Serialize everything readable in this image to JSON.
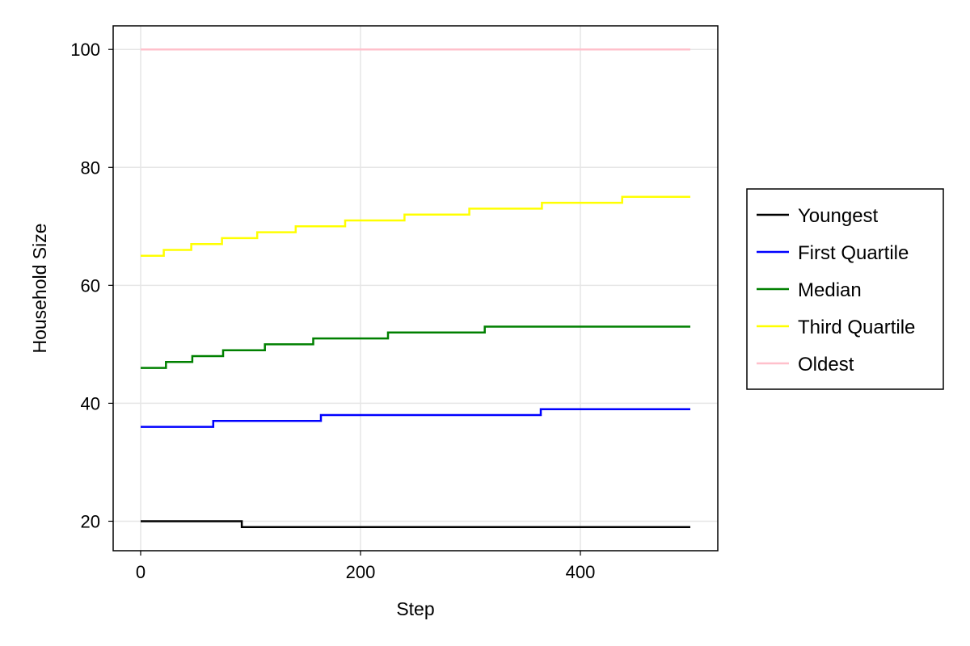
{
  "chart_data": {
    "type": "line",
    "xlabel": "Step",
    "ylabel": "Household Size",
    "xlim": [
      -25,
      525
    ],
    "ylim": [
      15,
      104
    ],
    "xticks": [
      0,
      200,
      400
    ],
    "yticks": [
      20,
      40,
      60,
      80,
      100
    ],
    "grid": true,
    "legend_position": "right",
    "step_style": "post",
    "series": [
      {
        "name": "Youngest",
        "color": "#000000",
        "x": [
          0,
          92,
          500
        ],
        "y": [
          20,
          19,
          19
        ]
      },
      {
        "name": "First Quartile",
        "color": "#0000ff",
        "x": [
          0,
          66,
          164,
          364,
          500
        ],
        "y": [
          36,
          37,
          38,
          39,
          39
        ]
      },
      {
        "name": "Median",
        "color": "#008000",
        "x": [
          0,
          23,
          47,
          75,
          113,
          157,
          225,
          313,
          500
        ],
        "y": [
          46,
          47,
          48,
          49,
          50,
          51,
          52,
          53,
          53
        ]
      },
      {
        "name": "Third Quartile",
        "color": "#ffff00",
        "x": [
          0,
          21,
          46,
          74,
          106,
          141,
          186,
          240,
          299,
          365,
          438,
          500
        ],
        "y": [
          65,
          66,
          67,
          68,
          69,
          70,
          71,
          72,
          73,
          74,
          75,
          75
        ]
      },
      {
        "name": "Oldest",
        "color": "#ffc0cb",
        "x": [
          0,
          500
        ],
        "y": [
          100,
          100
        ]
      }
    ]
  }
}
